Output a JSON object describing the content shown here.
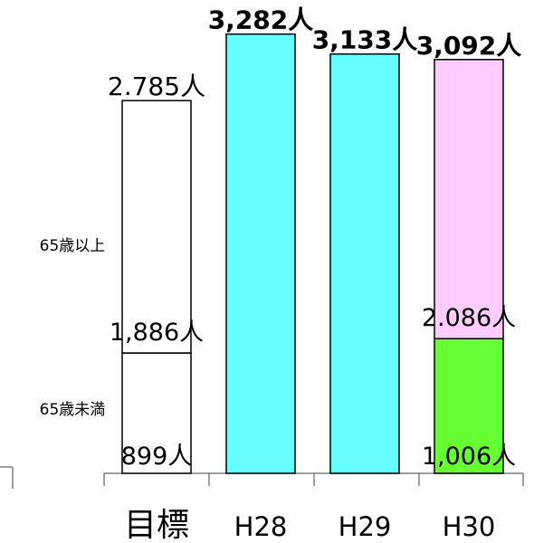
{
  "chart_data": {
    "type": "bar",
    "categories": [
      "目標",
      "H28",
      "H29",
      "H30"
    ],
    "ylim": [
      0,
      3300
    ],
    "grid": false,
    "bars": [
      {
        "category": "目標",
        "total": 2785,
        "total_label": "2.785人",
        "segments": [
          {
            "group": "65歳未満",
            "value": 899,
            "label": "899人"
          },
          {
            "group": "65歳以上",
            "value": 1886,
            "label": "1,886人"
          }
        ],
        "colors": [
          "#ffffff",
          "#ffffff"
        ]
      },
      {
        "category": "H28",
        "total": 3282,
        "total_label": "3,282人",
        "segments": [],
        "colors": [
          "#66ffff"
        ]
      },
      {
        "category": "H29",
        "total": 3133,
        "total_label": "3,133人",
        "segments": [],
        "colors": [
          "#66ffff"
        ]
      },
      {
        "category": "H30",
        "total": 3092,
        "total_label": "3,092人",
        "segments": [
          {
            "group": "65歳未満",
            "value": 1006,
            "label": "1,006人"
          },
          {
            "group": "65歳以上",
            "value": 2086,
            "label": "2.086人"
          }
        ],
        "colors": [
          "#66ff33",
          "#ffccff"
        ]
      }
    ],
    "group_labels": [
      "65歳未満",
      "65歳以上"
    ]
  }
}
